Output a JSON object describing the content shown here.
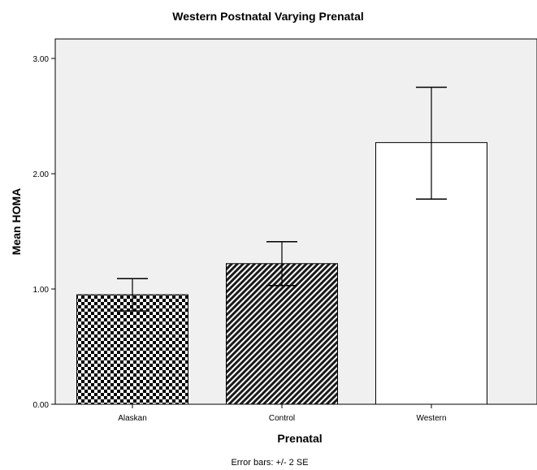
{
  "chart_data": {
    "type": "bar",
    "title": "Western Postnatal Varying Prenatal",
    "xlabel": "Prenatal",
    "ylabel": "Mean HOMA",
    "categories": [
      "Alaskan",
      "Control",
      "Western"
    ],
    "values": [
      0.95,
      1.22,
      2.27
    ],
    "error_bars": [
      {
        "low": 0.81,
        "high": 1.09
      },
      {
        "low": 1.03,
        "high": 1.41
      },
      {
        "low": 1.78,
        "high": 2.75
      }
    ],
    "bar_fills": [
      "checkerboard",
      "diagonal-hatch",
      "white"
    ],
    "ylim": [
      0,
      3.0
    ],
    "yticks": [
      "0.00",
      "1.00",
      "2.00",
      "3.00"
    ],
    "ytick_values": [
      0,
      1,
      2,
      3
    ],
    "grid": false,
    "footnote": "Error bars: +/- 2 SE"
  },
  "colors": {
    "plot_background": "#f0f0f0",
    "bar_stroke": "#000000",
    "hatch_dark": "#1a1a1a"
  }
}
